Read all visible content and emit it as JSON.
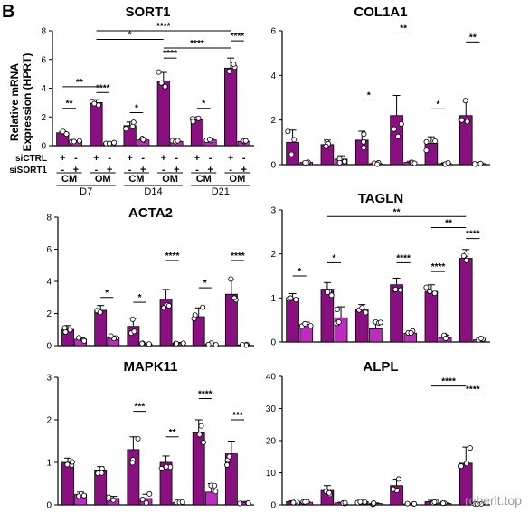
{
  "panel_label": "B",
  "ylabel": "Relative mRNA\nExpression (HPRT)",
  "watermark": "roberlt.top",
  "colors": {
    "ctrl": "#8a0f80",
    "sort1": "#c02bbf",
    "stroke": "#000000"
  },
  "treatment_rows": {
    "row1_label": "siCTRL",
    "row2_label": "siSORT1",
    "row1": [
      "+",
      "-",
      "+",
      "-",
      "+",
      "-",
      "+",
      "-",
      "+",
      "-",
      "+",
      "-"
    ],
    "row2": [
      "-",
      "+",
      "-",
      "+",
      "-",
      "+",
      "-",
      "+",
      "-",
      "+",
      "-",
      "+"
    ]
  },
  "media_labels": [
    "CM",
    "OM",
    "CM",
    "OM",
    "CM",
    "OM"
  ],
  "day_labels": [
    "D7",
    "D14",
    "D21"
  ],
  "chart_data": [
    {
      "type": "bar",
      "title": "SORT1",
      "ylim": [
        0,
        8
      ],
      "yticks": [
        0,
        2,
        4,
        6,
        8
      ],
      "categories": [
        "D7 CM siCTRL",
        "D7 CM siSORT1",
        "D7 OM siCTRL",
        "D7 OM siSORT1",
        "D14 CM siCTRL",
        "D14 CM siSORT1",
        "D14 OM siCTRL",
        "D14 OM siSORT1",
        "D21 CM siCTRL",
        "D21 CM siSORT1",
        "D21 OM siCTRL",
        "D21 OM siSORT1"
      ],
      "values": [
        0.9,
        0.3,
        3.0,
        0.2,
        1.4,
        0.4,
        4.5,
        0.3,
        1.8,
        0.4,
        5.4,
        0.3
      ],
      "errors": [
        0.1,
        0.05,
        0.2,
        0.05,
        0.25,
        0.1,
        0.6,
        0.05,
        0.2,
        0.05,
        0.7,
        0.05
      ],
      "significance": [
        {
          "from": 0,
          "to": 1,
          "label": "**",
          "y": 2.6
        },
        {
          "from": 0,
          "to": 2,
          "label": "**",
          "y": 4.1
        },
        {
          "from": 2,
          "to": 3,
          "label": "****",
          "y": 3.7
        },
        {
          "from": 4,
          "to": 5,
          "label": "*",
          "y": 2.3
        },
        {
          "from": 6,
          "to": 7,
          "label": "****",
          "y": 6.1
        },
        {
          "from": 8,
          "to": 9,
          "label": "*",
          "y": 2.6
        },
        {
          "from": 10,
          "to": 11,
          "label": "****",
          "y": 7.3
        },
        {
          "from": 2,
          "to": 10,
          "label": "****",
          "y": 8.0
        },
        {
          "from": 2,
          "to": 6,
          "label": "*",
          "y": 7.4
        },
        {
          "from": 6,
          "to": 10,
          "label": "****",
          "y": 6.8
        }
      ]
    },
    {
      "type": "bar",
      "title": "COL1A1",
      "ylim": [
        0,
        6
      ],
      "yticks": [
        0,
        2,
        4,
        6
      ],
      "values": [
        1.0,
        0.1,
        0.9,
        0.25,
        1.1,
        0.05,
        2.2,
        0.1,
        0.95,
        0.05,
        2.2,
        0.05
      ],
      "errors": [
        0.55,
        0.05,
        0.2,
        0.15,
        0.4,
        0.03,
        0.9,
        0.05,
        0.3,
        0.03,
        0.7,
        0.03
      ],
      "significance": [
        {
          "from": 4,
          "to": 5,
          "label": "*",
          "y": 2.9
        },
        {
          "from": 6,
          "to": 7,
          "label": "**",
          "y": 5.9
        },
        {
          "from": 8,
          "to": 9,
          "label": "*",
          "y": 2.5
        },
        {
          "from": 10,
          "to": 11,
          "label": "**",
          "y": 5.5
        }
      ]
    },
    {
      "type": "bar",
      "title": "ACTA2",
      "ylim": [
        0,
        8
      ],
      "yticks": [
        0,
        2,
        4,
        6,
        8
      ],
      "values": [
        1.0,
        0.4,
        2.2,
        0.5,
        1.2,
        0.1,
        2.9,
        0.15,
        1.8,
        0.1,
        3.2,
        0.05
      ],
      "errors": [
        0.25,
        0.1,
        0.3,
        0.1,
        0.5,
        0.05,
        0.6,
        0.05,
        0.55,
        0.05,
        0.9,
        0.03
      ],
      "significance": [
        {
          "from": 2,
          "to": 3,
          "label": "*",
          "y": 3.0
        },
        {
          "from": 4,
          "to": 5,
          "label": "*",
          "y": 2.7
        },
        {
          "from": 6,
          "to": 7,
          "label": "****",
          "y": 5.3
        },
        {
          "from": 8,
          "to": 9,
          "label": "*",
          "y": 3.6
        },
        {
          "from": 10,
          "to": 11,
          "label": "****",
          "y": 5.3
        }
      ]
    },
    {
      "type": "bar",
      "title": "TAGLN",
      "ylim": [
        0,
        3
      ],
      "yticks": [
        0,
        1,
        2,
        3
      ],
      "values": [
        1.0,
        0.4,
        1.2,
        0.55,
        0.75,
        0.3,
        1.3,
        0.2,
        1.15,
        0.1,
        1.9,
        0.05
      ],
      "errors": [
        0.1,
        0.05,
        0.15,
        0.25,
        0.1,
        0.15,
        0.15,
        0.05,
        0.15,
        0.05,
        0.2,
        0.03
      ],
      "significance": [
        {
          "from": 0,
          "to": 1,
          "label": "*",
          "y": 1.5
        },
        {
          "from": 2,
          "to": 3,
          "label": "*",
          "y": 1.8
        },
        {
          "from": 6,
          "to": 7,
          "label": "****",
          "y": 1.8
        },
        {
          "from": 8,
          "to": 9,
          "label": "****",
          "y": 1.6
        },
        {
          "from": 10,
          "to": 11,
          "label": "****",
          "y": 2.35
        },
        {
          "from": 8,
          "to": 10,
          "label": "**",
          "y": 2.6
        },
        {
          "from": 2,
          "to": 10,
          "label": "**",
          "y": 2.85
        }
      ]
    },
    {
      "type": "bar",
      "title": "MAPK11",
      "ylim": [
        0,
        3
      ],
      "yticks": [
        0,
        1,
        2,
        3
      ],
      "values": [
        1.0,
        0.25,
        0.8,
        0.15,
        1.3,
        0.15,
        1.0,
        0.05,
        1.7,
        0.3,
        1.2,
        0.05
      ],
      "errors": [
        0.1,
        0.05,
        0.1,
        0.05,
        0.3,
        0.1,
        0.15,
        0.03,
        0.3,
        0.2,
        0.3,
        0.03
      ],
      "significance": [
        {
          "from": 4,
          "to": 5,
          "label": "***",
          "y": 2.2
        },
        {
          "from": 6,
          "to": 7,
          "label": "**",
          "y": 1.6
        },
        {
          "from": 8,
          "to": 9,
          "label": "****",
          "y": 2.5
        },
        {
          "from": 10,
          "to": 11,
          "label": "***",
          "y": 2.0
        }
      ]
    },
    {
      "type": "bar",
      "title": "ALPL",
      "ylim": [
        0,
        40
      ],
      "yticks": [
        0,
        10,
        20,
        30,
        40
      ],
      "values": [
        1.0,
        0.8,
        4.5,
        0.6,
        1.0,
        0.4,
        6.0,
        0.3,
        1.0,
        0.4,
        13.0,
        0.2
      ],
      "errors": [
        0.3,
        0.2,
        1.5,
        0.2,
        0.4,
        0.2,
        2.0,
        0.1,
        0.4,
        0.2,
        5.0,
        0.1
      ],
      "significance": [
        {
          "from": 8,
          "to": 10,
          "label": "****",
          "y": 37.0
        },
        {
          "from": 10,
          "to": 11,
          "label": "****",
          "y": 34.5
        }
      ]
    }
  ]
}
